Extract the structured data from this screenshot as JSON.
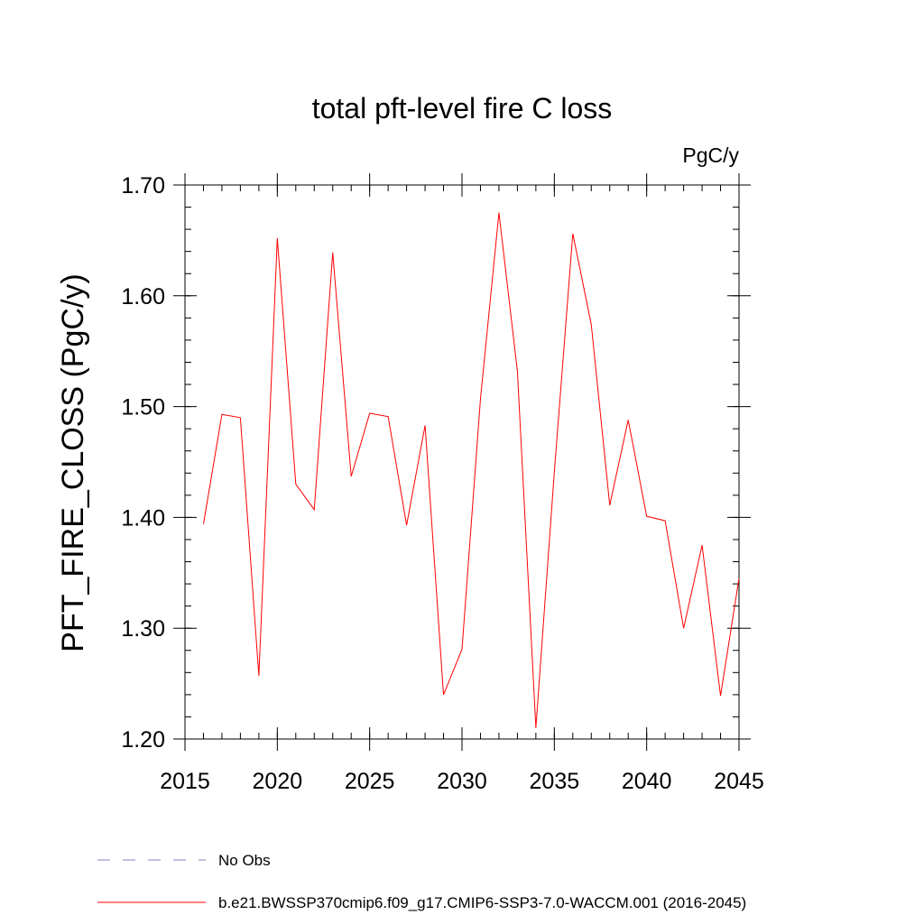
{
  "chart_data": {
    "type": "line",
    "title": "total pft-level fire C loss",
    "units_label": "PgC/y",
    "ylabel": "PFT_FIRE_CLOSS  (PgC/y)",
    "xlabel": "",
    "xlim": [
      2015,
      2045
    ],
    "ylim": [
      1.2,
      1.7
    ],
    "x_ticks": [
      2015,
      2020,
      2025,
      2030,
      2035,
      2040,
      2045
    ],
    "x_tick_labels": [
      "2015",
      "2020",
      "2025",
      "2030",
      "2035",
      "2040",
      "2045"
    ],
    "y_ticks": [
      1.2,
      1.3,
      1.4,
      1.5,
      1.6,
      1.7
    ],
    "y_tick_labels": [
      "1.20",
      "1.30",
      "1.40",
      "1.50",
      "1.60",
      "1.70"
    ],
    "grid": false,
    "legend_position": "bottom",
    "legend": [
      {
        "label": "No Obs",
        "style": "dashed",
        "color": "#8080c0"
      },
      {
        "label": "b.e21.BWSSP370cmip6.f09_g17.CMIP6-SSP3-7.0-WACCM.001 (2016-2045)",
        "style": "solid",
        "color": "#ff0000"
      }
    ],
    "series": [
      {
        "color": "#ff0000",
        "x": [
          2016,
          2017,
          2018,
          2019,
          2020,
          2021,
          2022,
          2023,
          2024,
          2025,
          2026,
          2027,
          2028,
          2029,
          2030,
          2031,
          2032,
          2033,
          2034,
          2035,
          2036,
          2037,
          2038,
          2039,
          2040,
          2041,
          2042,
          2043,
          2044,
          2045
        ],
        "values": [
          1.394,
          1.493,
          1.49,
          1.257,
          1.652,
          1.43,
          1.407,
          1.639,
          1.437,
          1.494,
          1.491,
          1.393,
          1.483,
          1.24,
          1.281,
          1.507,
          1.675,
          1.532,
          1.21,
          1.441,
          1.656,
          1.574,
          1.411,
          1.488,
          1.401,
          1.397,
          1.3,
          1.375,
          1.239,
          1.345
        ]
      }
    ]
  }
}
